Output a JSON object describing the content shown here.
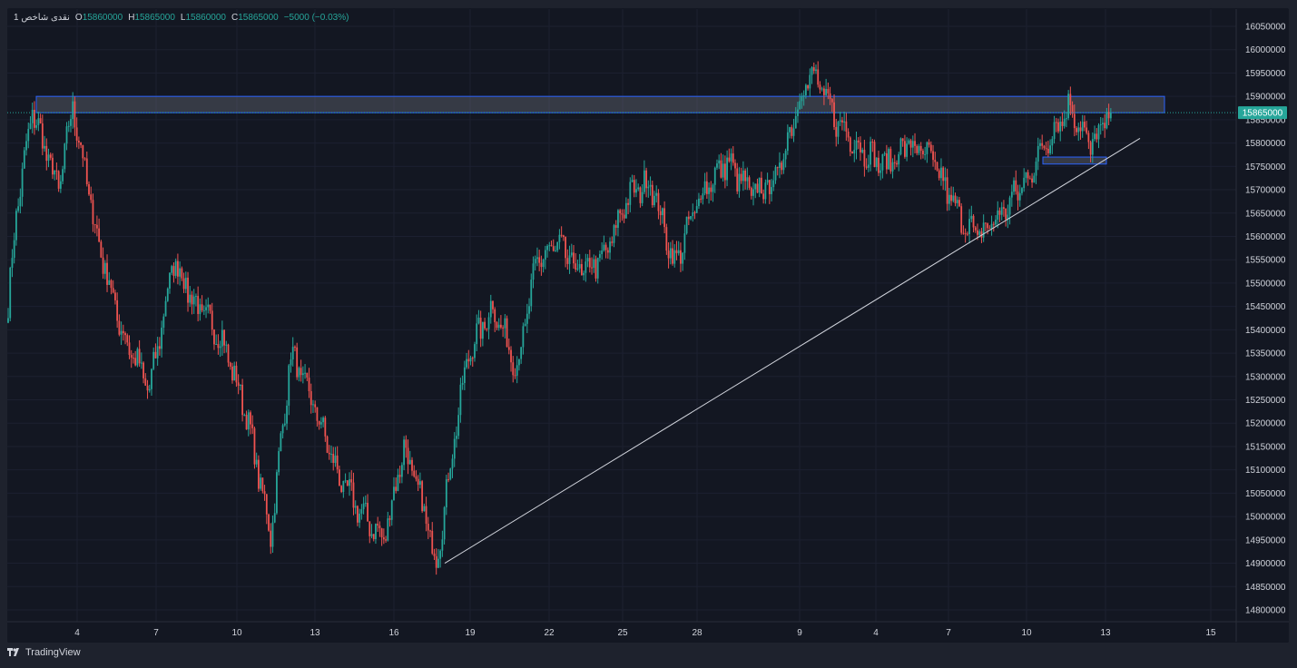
{
  "symbol": "1 نقدی شاخص",
  "legend": {
    "open_key": "O",
    "open": "15860000",
    "high_key": "H",
    "high": "15865000",
    "low_key": "L",
    "low": "15860000",
    "close_key": "C",
    "close": "15865000",
    "change": "−5000 (−0.03%)"
  },
  "price_badge": "15865000",
  "brand": "TradingView",
  "colors": {
    "up": "#26a69a",
    "down": "#ef5350",
    "background": "#131722",
    "zone": "#2962ff",
    "badge": "#26a69a"
  },
  "chart_data": {
    "type": "candlestick",
    "y_ticks": [
      "16050000",
      "16000000",
      "15950000",
      "15900000",
      "15850000",
      "15800000",
      "15750000",
      "15700000",
      "15650000",
      "15600000",
      "15550000",
      "15500000",
      "15450000",
      "15400000",
      "15350000",
      "15300000",
      "15250000",
      "15200000",
      "15150000",
      "15100000",
      "15050000",
      "15000000",
      "14950000",
      "14900000",
      "14850000",
      "14800000"
    ],
    "x_ticks": [
      "4",
      "7",
      "10",
      "13",
      "16",
      "19",
      "22",
      "25",
      "28",
      "9",
      "4",
      "7",
      "10",
      "13",
      "15"
    ],
    "ylim": [
      14780000,
      16070000
    ],
    "path_anchors": [
      {
        "i": 0,
        "p": 15450000
      },
      {
        "i": 4,
        "p": 15650000
      },
      {
        "i": 12,
        "p": 15870000
      },
      {
        "i": 25,
        "p": 15700000
      },
      {
        "i": 32,
        "p": 15880000
      },
      {
        "i": 44,
        "p": 15600000
      },
      {
        "i": 56,
        "p": 15400000
      },
      {
        "i": 70,
        "p": 15270000
      },
      {
        "i": 82,
        "p": 15550000
      },
      {
        "i": 92,
        "p": 15460000
      },
      {
        "i": 106,
        "p": 15380000
      },
      {
        "i": 118,
        "p": 15220000
      },
      {
        "i": 130,
        "p": 14960000
      },
      {
        "i": 140,
        "p": 15350000
      },
      {
        "i": 152,
        "p": 15230000
      },
      {
        "i": 164,
        "p": 15080000
      },
      {
        "i": 176,
        "p": 15000000
      },
      {
        "i": 186,
        "p": 14950000
      },
      {
        "i": 196,
        "p": 15150000
      },
      {
        "i": 206,
        "p": 15010000
      },
      {
        "i": 212,
        "p": 14900000
      },
      {
        "i": 222,
        "p": 15200000
      },
      {
        "i": 228,
        "p": 15350000
      },
      {
        "i": 240,
        "p": 15450000
      },
      {
        "i": 252,
        "p": 15320000
      },
      {
        "i": 262,
        "p": 15550000
      },
      {
        "i": 272,
        "p": 15580000
      },
      {
        "i": 284,
        "p": 15520000
      },
      {
        "i": 296,
        "p": 15560000
      },
      {
        "i": 306,
        "p": 15680000
      },
      {
        "i": 318,
        "p": 15720000
      },
      {
        "i": 330,
        "p": 15540000
      },
      {
        "i": 344,
        "p": 15700000
      },
      {
        "i": 356,
        "p": 15760000
      },
      {
        "i": 368,
        "p": 15690000
      },
      {
        "i": 380,
        "p": 15720000
      },
      {
        "i": 392,
        "p": 15900000
      },
      {
        "i": 398,
        "p": 15950000
      },
      {
        "i": 410,
        "p": 15850000
      },
      {
        "i": 422,
        "p": 15790000
      },
      {
        "i": 434,
        "p": 15750000
      },
      {
        "i": 446,
        "p": 15800000
      },
      {
        "i": 458,
        "p": 15760000
      },
      {
        "i": 470,
        "p": 15650000
      },
      {
        "i": 480,
        "p": 15600000
      },
      {
        "i": 492,
        "p": 15650000
      },
      {
        "i": 504,
        "p": 15720000
      },
      {
        "i": 516,
        "p": 15820000
      },
      {
        "i": 526,
        "p": 15880000
      },
      {
        "i": 536,
        "p": 15790000
      },
      {
        "i": 546,
        "p": 15865000
      }
    ],
    "resistance_zone": [
      15865000,
      15900000
    ],
    "support_zone": [
      15755000,
      15770000
    ],
    "trendline": [
      {
        "x": "18",
        "y": 14900000
      },
      {
        "x": "14",
        "y": 15810000
      }
    ],
    "last_price": 15865000
  }
}
